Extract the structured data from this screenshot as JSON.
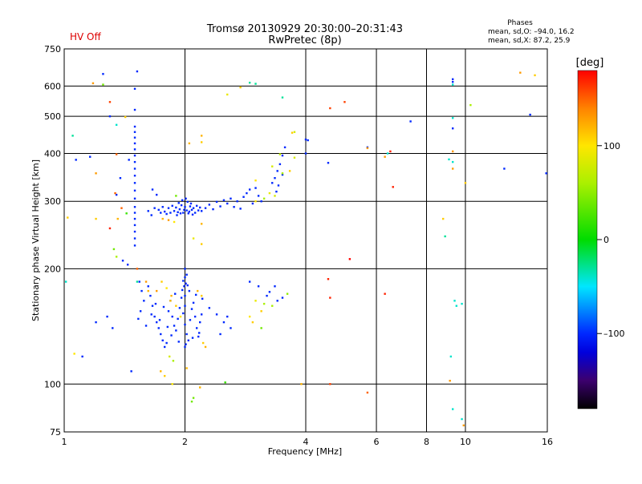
{
  "header": {
    "title_line1": "Tromsø 20130929 20:30:00–20:31:43",
    "title_line2": "RwPretec (8p)",
    "hv_status": "HV Off",
    "phases_title": "Phases",
    "phases_line1": "mean, sd,O: –94.0, 16.2",
    "phases_line2": "mean, sd,X:  87.2, 25.9"
  },
  "colorbar": {
    "unit_label": "[deg]",
    "ticks": [
      {
        "value": 100,
        "label": "100"
      },
      {
        "value": 0,
        "label": "0"
      },
      {
        "value": -100,
        "label": "–100"
      }
    ],
    "range": [
      -180,
      180
    ]
  },
  "chart_data": {
    "type": "scatter",
    "xlabel": "Frequency [MHz]",
    "ylabel": "Stationary phase Virtual Height [km]",
    "xscale": "log",
    "yscale": "log",
    "xlim": [
      1,
      16
    ],
    "ylim": [
      75,
      750
    ],
    "xticks": [
      {
        "value": 1,
        "label": "1"
      },
      {
        "value": 2,
        "label": "2"
      },
      {
        "value": 4,
        "label": "4"
      },
      {
        "value": 6,
        "label": "6"
      },
      {
        "value": 8,
        "label": "8"
      },
      {
        "value": 10,
        "label": "10"
      },
      {
        "value": 16,
        "label": "16"
      }
    ],
    "yticks": [
      {
        "value": 75,
        "label": "75"
      },
      {
        "value": 100,
        "label": "100"
      },
      {
        "value": 200,
        "label": "200"
      },
      {
        "value": 300,
        "label": "300"
      },
      {
        "value": 400,
        "label": "400"
      },
      {
        "value": 500,
        "label": "500"
      },
      {
        "value": 600,
        "label": "600"
      },
      {
        "value": 750,
        "label": "750"
      }
    ],
    "grid": true,
    "points": [
      [
        1.5,
        470,
        -100
      ],
      [
        1.5,
        455,
        -100
      ],
      [
        1.5,
        440,
        -100
      ],
      [
        1.5,
        425,
        -100
      ],
      [
        1.5,
        410,
        -100
      ],
      [
        1.5,
        395,
        -100
      ],
      [
        1.5,
        380,
        -100
      ],
      [
        1.5,
        365,
        -100
      ],
      [
        1.5,
        350,
        -100
      ],
      [
        1.5,
        335,
        -100
      ],
      [
        1.5,
        320,
        -100
      ],
      [
        1.5,
        305,
        -100
      ],
      [
        1.5,
        290,
        -100
      ],
      [
        1.5,
        280,
        -100
      ],
      [
        1.5,
        270,
        -100
      ],
      [
        1.5,
        260,
        -100
      ],
      [
        1.5,
        250,
        -100
      ],
      [
        1.5,
        240,
        -100
      ],
      [
        1.5,
        230,
        -100
      ],
      [
        1.5,
        520,
        -100
      ],
      [
        1.5,
        590,
        -100
      ],
      [
        1.52,
        655,
        -100
      ],
      [
        1.3,
        500,
        -100
      ],
      [
        1.25,
        645,
        -100
      ],
      [
        1.07,
        385,
        -100
      ],
      [
        1.11,
        118,
        -100
      ],
      [
        1.47,
        108,
        -100
      ],
      [
        1.44,
        205,
        -100
      ],
      [
        1.4,
        210,
        -100
      ],
      [
        1.72,
        285,
        -100
      ],
      [
        1.74,
        280,
        -100
      ],
      [
        1.76,
        290,
        -100
      ],
      [
        1.78,
        282,
        -100
      ],
      [
        1.8,
        278,
        -100
      ],
      [
        1.82,
        288,
        -100
      ],
      [
        1.84,
        280,
        -100
      ],
      [
        1.86,
        292,
        -100
      ],
      [
        1.88,
        283,
        -100
      ],
      [
        1.9,
        289,
        -100
      ],
      [
        1.92,
        281,
        -100
      ],
      [
        1.94,
        286,
        -100
      ],
      [
        1.96,
        293,
        -100
      ],
      [
        1.98,
        280,
        -100
      ],
      [
        2.0,
        290,
        -100
      ],
      [
        2.02,
        284,
        -100
      ],
      [
        2.04,
        279,
        -100
      ],
      [
        2.06,
        291,
        -100
      ],
      [
        2.08,
        285,
        -100
      ],
      [
        2.1,
        288,
        -100
      ],
      [
        2.12,
        280,
        -100
      ],
      [
        2.14,
        292,
        -100
      ],
      [
        2.16,
        284,
        -100
      ],
      [
        2.18,
        289,
        -100
      ],
      [
        2.2,
        283,
        -100
      ],
      [
        1.93,
        297,
        -100
      ],
      [
        1.97,
        302,
        -100
      ],
      [
        2.01,
        305,
        -100
      ],
      [
        2.03,
        299,
        -100
      ],
      [
        2.07,
        296,
        -100
      ],
      [
        1.99,
        285,
        -100
      ],
      [
        2.05,
        282,
        -100
      ],
      [
        1.95,
        279,
        -100
      ],
      [
        2.09,
        277,
        -100
      ],
      [
        1.91,
        276,
        -100
      ],
      [
        2.25,
        288,
        -100
      ],
      [
        2.3,
        294,
        -100
      ],
      [
        2.35,
        286,
        -100
      ],
      [
        2.4,
        299,
        -100
      ],
      [
        2.45,
        291,
        -100
      ],
      [
        2.5,
        302,
        -100
      ],
      [
        2.55,
        296,
        -100
      ],
      [
        2.6,
        305,
        -100
      ],
      [
        2.65,
        290,
        -100
      ],
      [
        2.7,
        300,
        -100
      ],
      [
        2.75,
        287,
        -100
      ],
      [
        2.8,
        308,
        -100
      ],
      [
        2.85,
        315,
        -100
      ],
      [
        2.9,
        322,
        -100
      ],
      [
        3.0,
        325,
        -100
      ],
      [
        3.05,
        310,
        -100
      ],
      [
        3.1,
        300,
        -100
      ],
      [
        2.95,
        296,
        -100
      ],
      [
        3.3,
        335,
        -100
      ],
      [
        3.35,
        345,
        -100
      ],
      [
        3.4,
        360,
        -100
      ],
      [
        3.45,
        375,
        -100
      ],
      [
        3.5,
        395,
        -100
      ],
      [
        3.55,
        415,
        -100
      ],
      [
        3.5,
        352,
        -100
      ],
      [
        3.38,
        318,
        -100
      ],
      [
        3.42,
        330,
        -100
      ],
      [
        1.62,
        283,
        -100
      ],
      [
        1.65,
        276,
        -100
      ],
      [
        1.68,
        288,
        -100
      ],
      [
        1.66,
        322,
        -100
      ],
      [
        1.7,
        312,
        -100
      ],
      [
        1.62,
        180,
        -100
      ],
      [
        1.64,
        170,
        -100
      ],
      [
        1.66,
        160,
        -100
      ],
      [
        1.68,
        150,
        -100
      ],
      [
        1.7,
        145,
        -100
      ],
      [
        1.72,
        140,
        -100
      ],
      [
        1.74,
        135,
        -100
      ],
      [
        1.76,
        130,
        -100
      ],
      [
        1.78,
        125,
        -100
      ],
      [
        1.8,
        128,
        -100
      ],
      [
        1.82,
        155,
        -100
      ],
      [
        1.84,
        165,
        -100
      ],
      [
        1.86,
        150,
        -100
      ],
      [
        1.88,
        142,
        -100
      ],
      [
        1.9,
        138,
        -100
      ],
      [
        1.92,
        148,
        -100
      ],
      [
        1.94,
        158,
        -100
      ],
      [
        1.96,
        168,
        -100
      ],
      [
        1.98,
        153,
        -100
      ],
      [
        2.0,
        143,
        -100
      ],
      [
        2.02,
        135,
        -100
      ],
      [
        2.04,
        130,
        -100
      ],
      [
        2.06,
        147,
        -100
      ],
      [
        2.08,
        157,
        -100
      ],
      [
        2.1,
        163,
        -100
      ],
      [
        2.12,
        150,
        -100
      ],
      [
        2.14,
        140,
        -100
      ],
      [
        2.16,
        133,
        -100
      ],
      [
        2.18,
        145,
        -100
      ],
      [
        2.2,
        152,
        -100
      ],
      [
        1.65,
        152,
        -100
      ],
      [
        1.69,
        162,
        -100
      ],
      [
        1.73,
        147,
        -100
      ],
      [
        1.77,
        159,
        -100
      ],
      [
        1.81,
        141,
        -100
      ],
      [
        1.85,
        134,
        -100
      ],
      [
        1.89,
        172,
        -100
      ],
      [
        1.93,
        129,
        -100
      ],
      [
        1.97,
        176,
        -100
      ],
      [
        2.01,
        127,
        -100
      ],
      [
        2.05,
        175,
        -100
      ],
      [
        2.09,
        132,
        -100
      ],
      [
        2.13,
        171,
        -100
      ],
      [
        2.17,
        136,
        -100
      ],
      [
        2.21,
        167,
        -100
      ],
      [
        1.99,
        180,
        -100
      ],
      [
        2.01,
        183,
        -100
      ],
      [
        2.03,
        181,
        -100
      ],
      [
        2.0,
        190,
        -100
      ],
      [
        2.02,
        193,
        -100
      ],
      [
        1.98,
        186,
        -100
      ],
      [
        2.0,
        170,
        -100
      ],
      [
        2.0,
        160,
        -100
      ],
      [
        2.0,
        125,
        -100
      ],
      [
        2.0,
        200,
        -100
      ],
      [
        2.3,
        158,
        -100
      ],
      [
        2.4,
        152,
        -100
      ],
      [
        2.5,
        145,
        -100
      ],
      [
        2.6,
        140,
        -100
      ],
      [
        2.45,
        135,
        -100
      ],
      [
        2.55,
        150,
        -100
      ],
      [
        2.9,
        185,
        -100
      ],
      [
        3.05,
        180,
        -100
      ],
      [
        3.2,
        170,
        -100
      ],
      [
        3.4,
        165,
        -100
      ],
      [
        3.5,
        168,
        -100
      ],
      [
        3.35,
        180,
        -100
      ],
      [
        3.25,
        174,
        -100
      ],
      [
        4.0,
        400,
        -100
      ],
      [
        4.0,
        435,
        -100
      ],
      [
        4.55,
        378,
        -100
      ],
      [
        5.7,
        415,
        -100
      ],
      [
        7.3,
        485,
        -100
      ],
      [
        9.3,
        625,
        -100
      ],
      [
        9.3,
        615,
        -100
      ],
      [
        12.5,
        365,
        -100
      ],
      [
        14.5,
        505,
        -100
      ],
      [
        15.9,
        355,
        -100
      ],
      [
        9.3,
        465,
        -100
      ],
      [
        1.35,
        312,
        -100
      ],
      [
        1.38,
        345,
        -100
      ],
      [
        1.45,
        385,
        -100
      ],
      [
        1.16,
        392,
        -100
      ],
      [
        1.32,
        140,
        -100
      ],
      [
        1.28,
        150,
        -100
      ],
      [
        1.2,
        145,
        -100
      ],
      [
        1.6,
        142,
        -100
      ],
      [
        1.55,
        155,
        -100
      ],
      [
        1.58,
        165,
        -100
      ],
      [
        1.56,
        175,
        -100
      ],
      [
        1.54,
        185,
        -100
      ],
      [
        1.53,
        148,
        -100
      ],
      [
        1.25,
        605,
        40
      ],
      [
        1.42,
        498,
        110
      ],
      [
        1.3,
        545,
        160
      ],
      [
        1.18,
        610,
        130
      ],
      [
        1.2,
        355,
        130
      ],
      [
        1.35,
        398,
        150
      ],
      [
        1.34,
        315,
        150
      ],
      [
        1.39,
        288,
        150
      ],
      [
        1.36,
        270,
        120
      ],
      [
        1.2,
        270,
        110
      ],
      [
        1.02,
        272,
        110
      ],
      [
        1.06,
        120,
        100
      ],
      [
        1.43,
        279,
        20
      ],
      [
        1.35,
        215,
        60
      ],
      [
        1.3,
        255,
        170
      ],
      [
        1.33,
        225,
        40
      ],
      [
        1.52,
        200,
        150
      ],
      [
        1.6,
        185,
        130
      ],
      [
        1.62,
        175,
        120
      ],
      [
        1.75,
        185,
        110
      ],
      [
        1.8,
        178,
        100
      ],
      [
        1.7,
        175,
        130
      ],
      [
        1.85,
        170,
        120
      ],
      [
        1.9,
        160,
        110
      ],
      [
        1.95,
        150,
        100
      ],
      [
        2.15,
        175,
        120
      ],
      [
        2.2,
        170,
        110
      ],
      [
        1.84,
        165,
        115
      ],
      [
        2.18,
        98,
        120
      ],
      [
        2.1,
        92,
        40
      ],
      [
        2.08,
        90,
        40
      ],
      [
        1.74,
        108,
        120
      ],
      [
        1.78,
        105,
        110
      ],
      [
        1.86,
        100,
        100
      ],
      [
        1.83,
        118,
        80
      ],
      [
        2.52,
        101,
        20
      ],
      [
        2.2,
        262,
        120
      ],
      [
        1.82,
        268,
        130
      ],
      [
        1.88,
        265,
        100
      ],
      [
        1.76,
        270,
        120
      ],
      [
        1.9,
        310,
        40
      ],
      [
        2.1,
        240,
        90
      ],
      [
        2.2,
        232,
        110
      ],
      [
        2.05,
        425,
        120
      ],
      [
        2.2,
        445,
        120
      ],
      [
        2.2,
        428,
        110
      ],
      [
        2.75,
        595,
        110
      ],
      [
        2.55,
        570,
        90
      ],
      [
        2.22,
        128,
        110
      ],
      [
        2.25,
        125,
        120
      ],
      [
        1.87,
        115,
        60
      ],
      [
        2.02,
        110,
        120
      ],
      [
        2.9,
        150,
        100
      ],
      [
        2.95,
        145,
        110
      ],
      [
        3.1,
        155,
        110
      ],
      [
        3.3,
        160,
        60
      ],
      [
        3.1,
        140,
        40
      ],
      [
        3.0,
        165,
        90
      ],
      [
        3.15,
        162,
        60
      ],
      [
        3.6,
        172,
        50
      ],
      [
        3.9,
        100,
        120
      ],
      [
        4.6,
        100,
        160
      ],
      [
        4.55,
        188,
        170
      ],
      [
        4.6,
        168,
        170
      ],
      [
        3.3,
        370,
        80
      ],
      [
        3.5,
        355,
        60
      ],
      [
        3.65,
        360,
        110
      ],
      [
        3.75,
        390,
        80
      ],
      [
        3.35,
        310,
        80
      ],
      [
        3.25,
        315,
        90
      ],
      [
        3.15,
        305,
        60
      ],
      [
        3.0,
        300,
        100
      ],
      [
        3.75,
        455,
        80
      ],
      [
        3.45,
        398,
        70
      ],
      [
        3.7,
        453,
        110
      ],
      [
        3.0,
        340,
        100
      ],
      [
        4.6,
        525,
        160
      ],
      [
        5.0,
        545,
        160
      ],
      [
        5.15,
        212,
        180
      ],
      [
        5.7,
        413,
        130
      ],
      [
        6.3,
        392,
        130
      ],
      [
        6.5,
        405,
        170
      ],
      [
        6.6,
        327,
        170
      ],
      [
        6.3,
        172,
        170
      ],
      [
        8.8,
        270,
        110
      ],
      [
        9.15,
        102,
        130
      ],
      [
        9.3,
        365,
        130
      ],
      [
        9.3,
        405,
        130
      ],
      [
        10.0,
        335,
        110
      ],
      [
        9.9,
        78,
        130
      ],
      [
        10.3,
        535,
        60
      ],
      [
        13.7,
        650,
        130
      ],
      [
        14.9,
        640,
        110
      ],
      [
        5.7,
        95,
        150
      ],
      [
        8.9,
        243,
        -30
      ],
      [
        9.1,
        386,
        -40
      ],
      [
        9.3,
        380,
        -40
      ],
      [
        9.3,
        495,
        -40
      ],
      [
        9.3,
        605,
        -40
      ],
      [
        9.3,
        86,
        -40
      ],
      [
        9.4,
        165,
        -40
      ],
      [
        9.2,
        118,
        -40
      ],
      [
        9.8,
        162,
        -40
      ],
      [
        9.8,
        81,
        -40
      ],
      [
        9.5,
        160,
        -40
      ],
      [
        1.01,
        185,
        -40
      ],
      [
        1.52,
        185,
        -30
      ],
      [
        1.05,
        445,
        -30
      ],
      [
        2.9,
        612,
        -30
      ],
      [
        3.5,
        560,
        -30
      ],
      [
        3.0,
        608,
        -30
      ],
      [
        6.4,
        400,
        -40
      ],
      [
        1.35,
        475,
        -40
      ],
      [
        4.05,
        433,
        -100
      ]
    ]
  }
}
